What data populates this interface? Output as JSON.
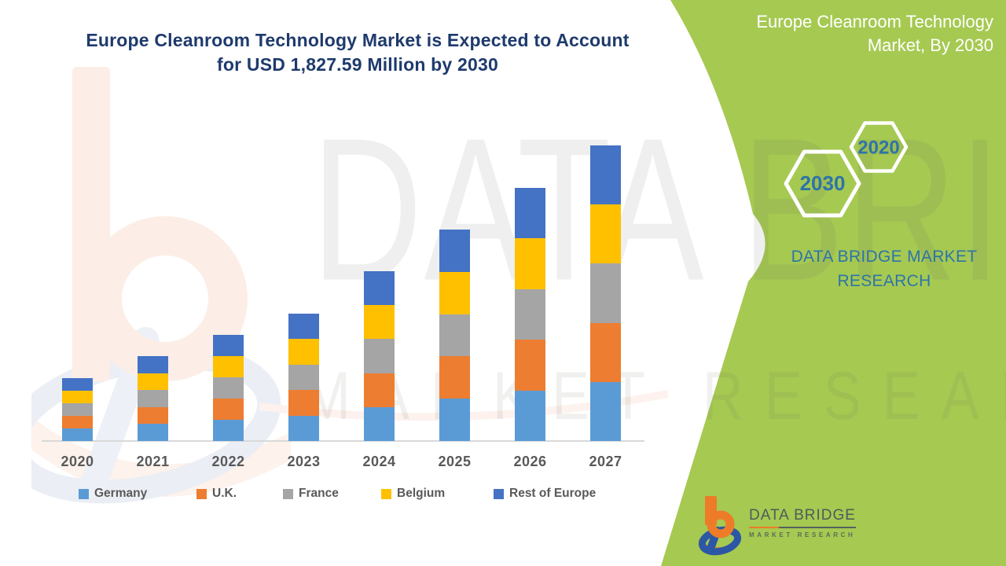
{
  "header": {
    "title_line1": "Europe Cleanroom Technology Market is Expected to Account",
    "title_line2": "for USD 1,827.59 Million by 2030"
  },
  "banner": {
    "title_line1": "Europe Cleanroom Technology",
    "title_line2": "Market, By 2030",
    "hexagon_large_label": "2030",
    "hexagon_small_label": "2020",
    "brand_line1": "DATA BRIDGE MARKET",
    "brand_line2": "RESEARCH",
    "green_color": "#a6c952",
    "accent_text_color": "#2e74a8"
  },
  "watermark": {
    "line1": "DATA BRIDGE",
    "line2": "MARKET RESEARCH"
  },
  "chart_data": {
    "type": "bar",
    "stacked": true,
    "title": "Europe Cleanroom Technology Market is Expected to Account for USD 1,827.59 Million by 2030",
    "categories": [
      "2020",
      "2021",
      "2022",
      "2023",
      "2024",
      "2025",
      "2026",
      "2027"
    ],
    "series": [
      {
        "name": "Germany",
        "color": "#5b9bd5",
        "values": [
          16,
          21.6,
          27,
          32.4,
          43.2,
          53.8,
          64.4,
          75.2
        ]
      },
      {
        "name": "U.K.",
        "color": "#ed7d31",
        "values": [
          16,
          21.6,
          27,
          32.4,
          43.2,
          53.8,
          64.4,
          75.2
        ]
      },
      {
        "name": "France",
        "color": "#a5a5a5",
        "values": [
          16,
          21.6,
          27,
          32.4,
          43.2,
          53.8,
          64.4,
          75.2
        ]
      },
      {
        "name": "Belgium",
        "color": "#ffc000",
        "values": [
          16,
          21.6,
          27,
          32.4,
          43.2,
          53.8,
          64.4,
          75.2
        ]
      },
      {
        "name": "Rest of Europe",
        "color": "#4472c4",
        "values": [
          16,
          21.6,
          27,
          32.4,
          43.2,
          53.8,
          64.4,
          75.2
        ]
      }
    ],
    "totals": [
      80,
      108,
      135,
      162,
      216,
      269,
      322,
      376
    ],
    "y_axis": "none shown - values are relative units estimated from bar heights",
    "xlabel": "",
    "ylabel": "",
    "grid": false,
    "legend_position": "bottom"
  },
  "footer_logo": {
    "name_line": "DATA BRIDGE",
    "tagline": "MARKET RESEARCH"
  }
}
